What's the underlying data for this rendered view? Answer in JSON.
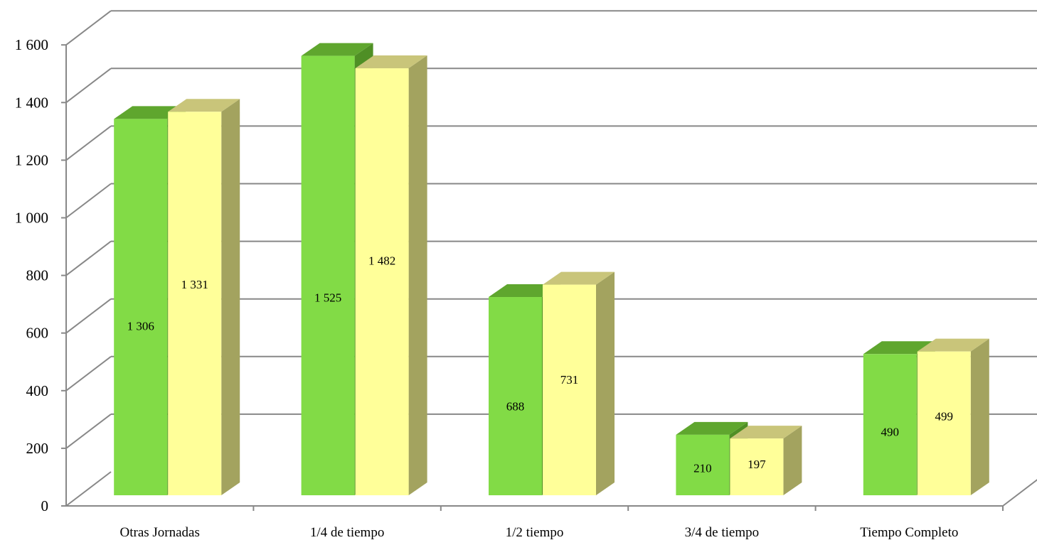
{
  "chart_data": {
    "type": "bar",
    "categories": [
      "Otras Jornadas",
      "1/4 de tiempo",
      "1/2 tiempo",
      "3/4 de tiempo",
      "Tiempo Completo"
    ],
    "series": [
      {
        "values": [
          1306,
          1525,
          688,
          210,
          490
        ],
        "color": "#82db46"
      },
      {
        "values": [
          1331,
          1482,
          731,
          197,
          499
        ],
        "color": "#ffff99"
      }
    ],
    "data_labels": [
      [
        "1 306",
        "1 525",
        "688",
        "210",
        "490"
      ],
      [
        "1 331",
        "1 482",
        "731",
        "197",
        "499"
      ]
    ],
    "y_ticks": [
      {
        "value": 0,
        "label": "0"
      },
      {
        "value": 200,
        "label": "200"
      },
      {
        "value": 400,
        "label": "400"
      },
      {
        "value": 600,
        "label": "600"
      },
      {
        "value": 800,
        "label": "800"
      },
      {
        "value": 1000,
        "label": "1 000"
      },
      {
        "value": 1200,
        "label": "1 200"
      },
      {
        "value": 1400,
        "label": "1 400"
      },
      {
        "value": 1600,
        "label": "1 600"
      }
    ],
    "ylim": [
      0,
      1600
    ],
    "title": "",
    "xlabel": "",
    "ylabel": "",
    "grid": true,
    "style": "3d-clustered-column"
  }
}
